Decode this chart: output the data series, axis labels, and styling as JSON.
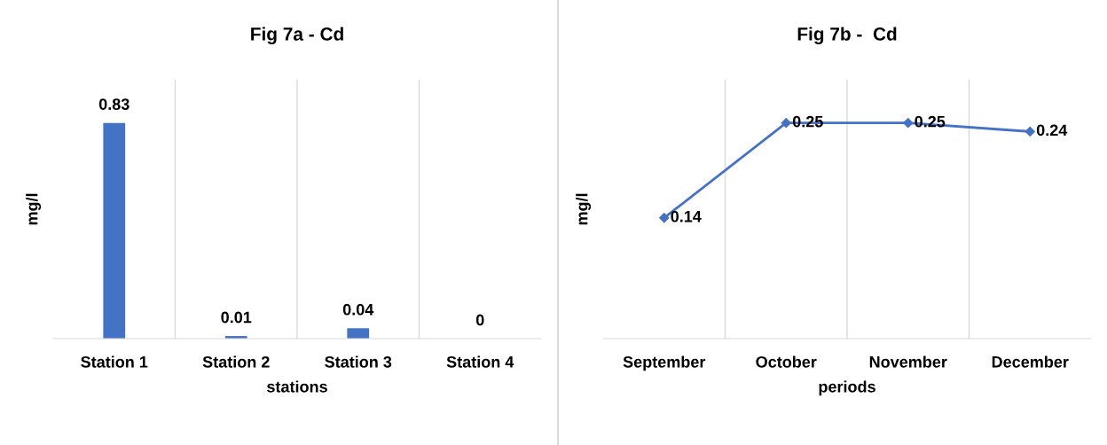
{
  "chart_data": [
    {
      "type": "bar",
      "title": "Fig 7a - Cd",
      "xlabel": "stations",
      "ylabel": "mg/l",
      "categories": [
        "Station 1",
        "Station 2",
        "Station 3",
        "Station 4"
      ],
      "values": [
        0.83,
        0.01,
        0.04,
        0
      ],
      "color": "#4472c4",
      "data_labels": true,
      "grid": "x",
      "tick_labels": "x"
    },
    {
      "type": "line",
      "title": "Fig 7b -  Cd",
      "xlabel": "periods",
      "ylabel": "mg/l",
      "categories": [
        "September",
        "October",
        "November",
        "December"
      ],
      "values": [
        0.14,
        0.25,
        0.25,
        0.24
      ],
      "color": "#4472c4",
      "marker": "diamond",
      "data_labels": true,
      "grid": "x",
      "tick_labels": "x"
    }
  ]
}
